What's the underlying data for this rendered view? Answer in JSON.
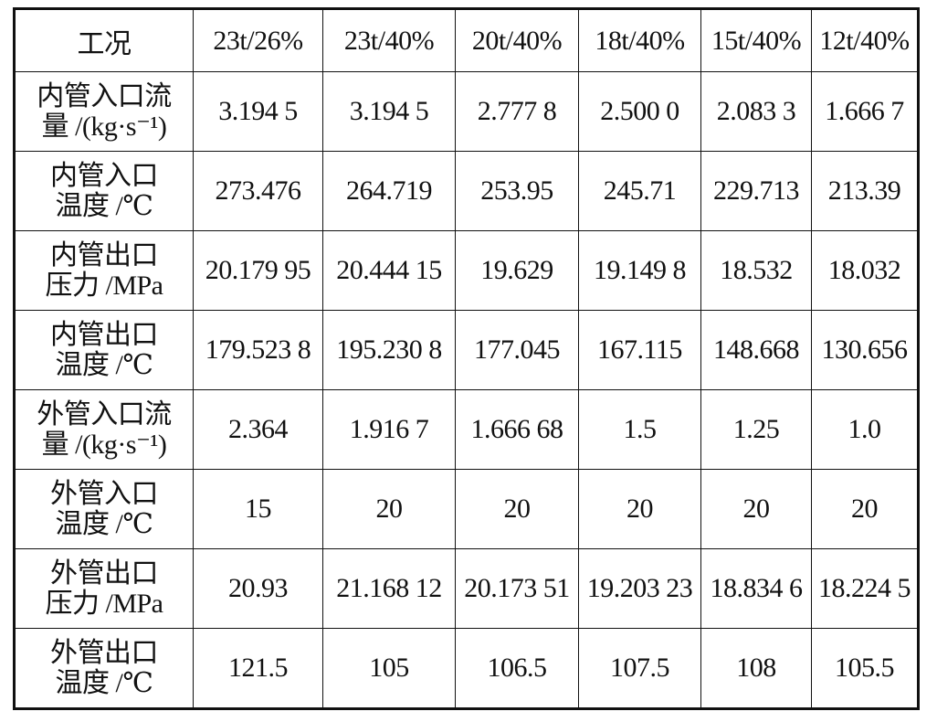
{
  "table": {
    "header": [
      "工况",
      "23t/26%",
      "23t/40%",
      "20t/40%",
      "18t/40%",
      "15t/40%",
      "12t/40%"
    ],
    "rows": [
      {
        "label": [
          "内管入口流",
          "量 /(kg·s⁻¹)"
        ],
        "values": [
          "3.194 5",
          "3.194 5",
          "2.777 8",
          "2.500 0",
          "2.083 3",
          "1.666 7"
        ]
      },
      {
        "label": [
          "内管入口",
          "温度 /℃"
        ],
        "values": [
          "273.476",
          "264.719",
          "253.95",
          "245.71",
          "229.713",
          "213.39"
        ]
      },
      {
        "label": [
          "内管出口",
          "压力 /MPa"
        ],
        "values": [
          "20.179 95",
          "20.444 15",
          "19.629",
          "19.149 8",
          "18.532",
          "18.032"
        ]
      },
      {
        "label": [
          "内管出口",
          "温度 /℃"
        ],
        "values": [
          "179.523 8",
          "195.230 8",
          "177.045",
          "167.115",
          "148.668",
          "130.656"
        ]
      },
      {
        "label": [
          "外管入口流",
          "量 /(kg·s⁻¹)"
        ],
        "values": [
          "2.364",
          "1.916 7",
          "1.666 68",
          "1.5",
          "1.25",
          "1.0"
        ]
      },
      {
        "label": [
          "外管入口",
          "温度 /℃"
        ],
        "values": [
          "15",
          "20",
          "20",
          "20",
          "20",
          "20"
        ]
      },
      {
        "label": [
          "外管出口",
          "压力 /MPa"
        ],
        "values": [
          "20.93",
          "21.168 12",
          "20.173 51",
          "19.203 23",
          "18.834 6",
          "18.224 5"
        ]
      },
      {
        "label": [
          "外管出口",
          "温度 /℃"
        ],
        "values": [
          "121.5",
          "105",
          "106.5",
          "107.5",
          "108",
          "105.5"
        ]
      }
    ]
  }
}
